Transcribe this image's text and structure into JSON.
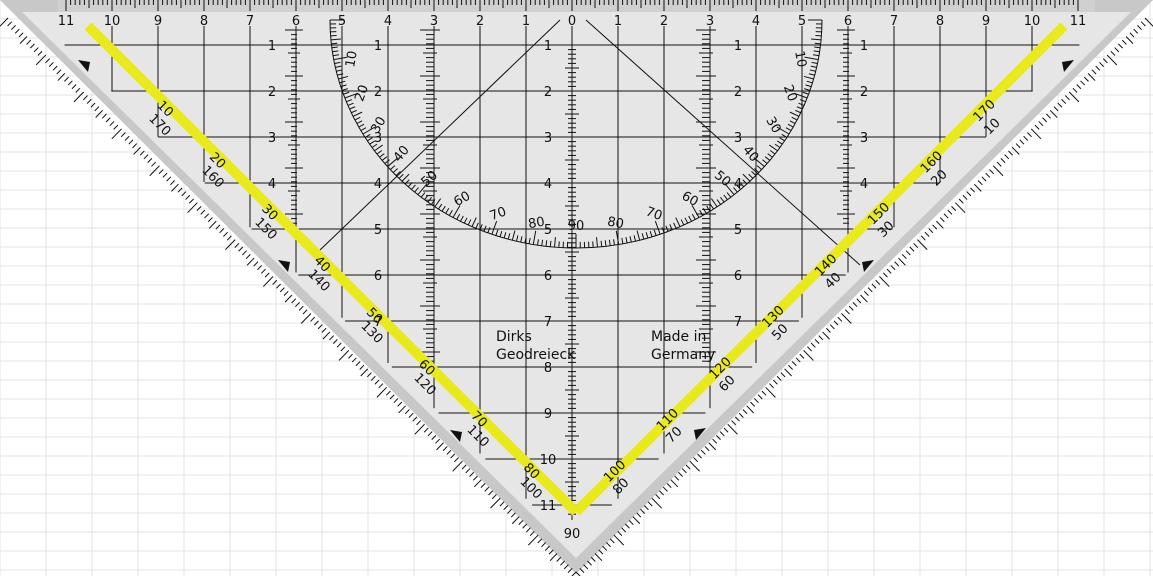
{
  "title": "Dirks Geodreieck set square",
  "imprint": {
    "brand_line1": "Dirks",
    "brand_line2": "Geodreieck",
    "origin_line1": "Made in",
    "origin_line2": "Germany"
  },
  "top_scale": {
    "labels_left": [
      "11",
      "10",
      "9",
      "8",
      "7",
      "6",
      "5",
      "4",
      "3",
      "2",
      "1"
    ],
    "zero": "0",
    "labels_right": [
      "1",
      "2",
      "3",
      "4",
      "5",
      "6",
      "7",
      "8",
      "9",
      "10",
      "11"
    ]
  },
  "center_scale": {
    "labels": [
      "1",
      "2",
      "3",
      "4",
      "5",
      "6",
      "7",
      "8",
      "9",
      "10",
      "11"
    ],
    "bottom_label": "90"
  },
  "inner_vertical_scales": {
    "labels": [
      "1",
      "2",
      "3",
      "4",
      "5",
      "6",
      "7"
    ]
  },
  "outer_vertical_scales": {
    "labels": [
      "1",
      "2",
      "3",
      "4"
    ]
  },
  "protractor": {
    "outer_labels": [
      "10",
      "20",
      "30",
      "40",
      "50",
      "60",
      "70",
      "80",
      "90"
    ],
    "outer_labels_right": [
      "10",
      "20",
      "30",
      "40",
      "50",
      "60",
      "70",
      "80"
    ]
  },
  "left_edge_scale": {
    "primary": [
      "10",
      "20",
      "30",
      "40",
      "50",
      "60",
      "70",
      "80"
    ],
    "secondary": [
      "170",
      "160",
      "150",
      "140",
      "130",
      "120",
      "110",
      "100"
    ]
  },
  "right_edge_scale": {
    "primary": [
      "170",
      "160",
      "150",
      "140",
      "130",
      "120",
      "110",
      "100"
    ],
    "secondary": [
      "10",
      "20",
      "30",
      "40",
      "50",
      "60",
      "70",
      "80"
    ]
  },
  "colors": {
    "body": "#e6e6e6",
    "rim": "#c4c4c4",
    "highlight": "#e8ea1c",
    "lines": "#111111",
    "grid_paper": "#e3e3e3"
  }
}
